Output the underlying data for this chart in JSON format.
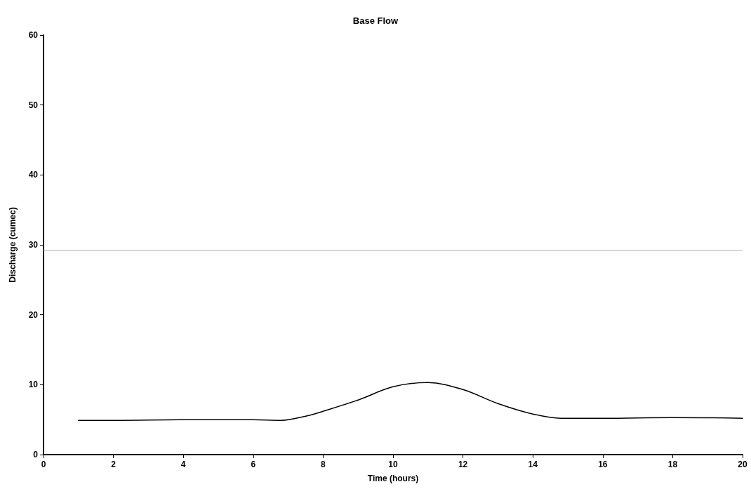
{
  "chart_data": {
    "type": "line",
    "title": "Base Flow",
    "xlabel": "Time (hours)",
    "ylabel": "Discharge (cumec)",
    "x": [
      1,
      2,
      4,
      6,
      6.8,
      7.5,
      8,
      9,
      10,
      11,
      12,
      13,
      14,
      14.8,
      16,
      18,
      20
    ],
    "series": [
      {
        "color": "#000000",
        "values": [
          4.9,
          4.9,
          5.0,
          5.0,
          4.9,
          5.5,
          6.2,
          7.8,
          9.7,
          10.3,
          9.3,
          7.3,
          5.8,
          5.2,
          5.2,
          5.3,
          5.2
        ]
      }
    ],
    "xlim": [
      0,
      20
    ],
    "xticks": [
      0,
      2,
      4,
      6,
      8,
      10,
      12,
      14,
      16,
      18,
      20
    ],
    "ylim": [
      0,
      60
    ],
    "yticks": [
      0,
      10,
      20,
      30,
      40,
      50,
      60
    ],
    "ref_lines": [
      {
        "axis": "y",
        "value": 29.2,
        "color": "#c8c8c8"
      }
    ],
    "grid": false,
    "marker": "none",
    "line_style": "solid"
  }
}
